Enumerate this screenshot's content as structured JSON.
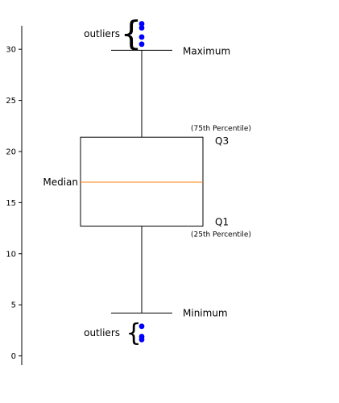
{
  "chart_data": {
    "type": "box",
    "ylim": [
      -0.9,
      32.3
    ],
    "yticks": [
      0,
      5,
      10,
      15,
      20,
      25,
      30
    ],
    "grid": false,
    "box": {
      "minimum": 4.2,
      "q1": 12.7,
      "median": 17.0,
      "q3": 21.4,
      "maximum": 29.9
    },
    "outliers_high": [
      30.5,
      31.2,
      32.1,
      32.5
    ],
    "outliers_low": [
      1.6,
      1.9,
      2.9
    ],
    "annotations": {
      "outliers_top": "outliers",
      "outliers_bottom": "outliers",
      "maximum": "Maximum",
      "minimum": "Minimum",
      "median": "Median",
      "q3": "Q3",
      "q3_note": "(75th Percentile)",
      "q1": "Q1",
      "q1_note": "(25th Percentile)"
    },
    "colors": {
      "box": "#000000",
      "median": "#ff7f0e",
      "outlier": "#0000ff"
    }
  }
}
